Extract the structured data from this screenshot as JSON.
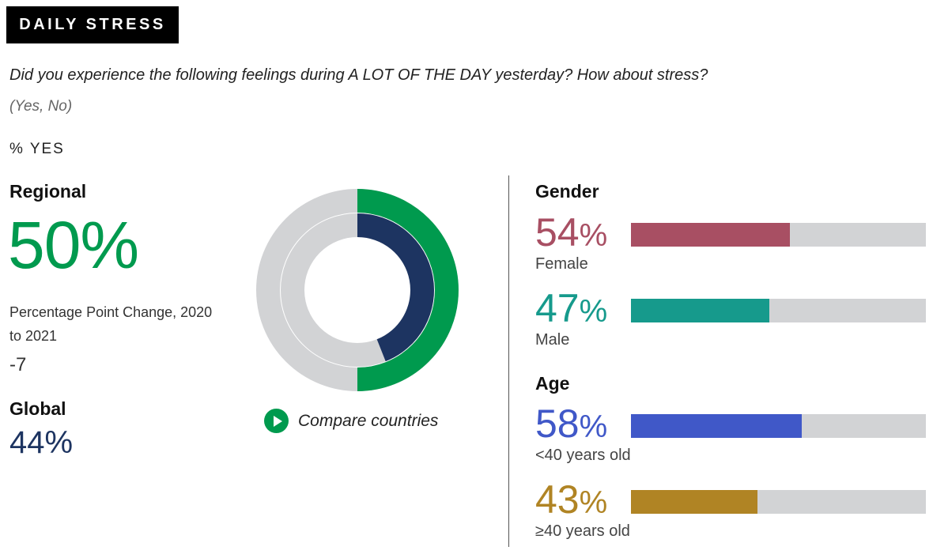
{
  "header": {
    "tag": "DAILY STRESS"
  },
  "question": "Did you experience the following feelings during A LOT OF THE DAY yesterday? How about stress?",
  "options": "(Yes, No)",
  "measure_label": "% YES",
  "regional": {
    "label": "Regional",
    "value": "50%",
    "change_label": "Percentage Point Change, 2020 to 2021",
    "change_value": "-7"
  },
  "global": {
    "label": "Global",
    "value": "44%"
  },
  "compare_label": "Compare countries",
  "colors": {
    "regional": "#009a4e",
    "global": "#1d3461",
    "track": "#d2d3d5",
    "female": "#a84f63",
    "male": "#169a8c",
    "under40": "#4058c8",
    "over40": "#b08424"
  },
  "gender": {
    "title": "Gender",
    "rows": [
      {
        "pct": "54",
        "label": "Female"
      },
      {
        "pct": "47",
        "label": "Male"
      }
    ]
  },
  "age": {
    "title": "Age",
    "rows": [
      {
        "pct": "58",
        "label": "<40 years old"
      },
      {
        "pct": "43",
        "label": "≥40 years old"
      }
    ]
  },
  "chart_data": [
    {
      "type": "pie",
      "subtype": "concentric-donut",
      "series": [
        {
          "name": "Regional",
          "values": [
            50
          ]
        },
        {
          "name": "Global",
          "values": [
            44
          ]
        }
      ],
      "ylim": [
        0,
        100
      ]
    },
    {
      "type": "bar",
      "orientation": "horizontal",
      "categories": [
        "Female",
        "Male",
        "<40 years old",
        "≥40 years old"
      ],
      "values": [
        54,
        47,
        58,
        43
      ],
      "ylim": [
        0,
        100
      ]
    }
  ]
}
